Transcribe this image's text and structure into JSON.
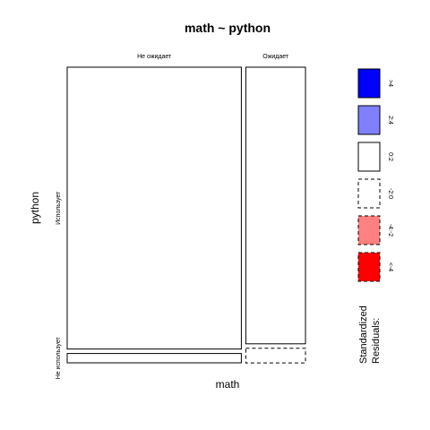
{
  "chart_data": {
    "type": "mosaic",
    "title": "math ~ python",
    "xlabel": "math",
    "ylabel": "python",
    "x_levels": [
      "Не ожидает",
      "Ожидает"
    ],
    "y_levels": [
      "Использует",
      "Не использует"
    ],
    "x_proportions": [
      0.745,
      0.255
    ],
    "y_proportions_within_x": [
      [
        0.968,
        0.032
      ],
      [
        0.95,
        0.05
      ]
    ],
    "residual_classes": [
      [
        "0:2",
        "0:2"
      ],
      [
        "0:2",
        "-2:0"
      ]
    ],
    "legend": {
      "title_lines": [
        "Standardized",
        "Residuals:"
      ],
      "placement": "right",
      "items": [
        {
          "label": ">4",
          "fill": "#0000ff",
          "dashed": false
        },
        {
          "label": "2:4",
          "fill": "#8080ff",
          "dashed": false
        },
        {
          "label": "0:2",
          "fill": "#ffffff",
          "dashed": false
        },
        {
          "label": "-2:0",
          "fill": "#ffffff",
          "dashed": true
        },
        {
          "label": "-4:-2",
          "fill": "#ff8080",
          "dashed": true
        },
        {
          "label": "<-4",
          "fill": "#ff0000",
          "dashed": true
        }
      ]
    }
  }
}
